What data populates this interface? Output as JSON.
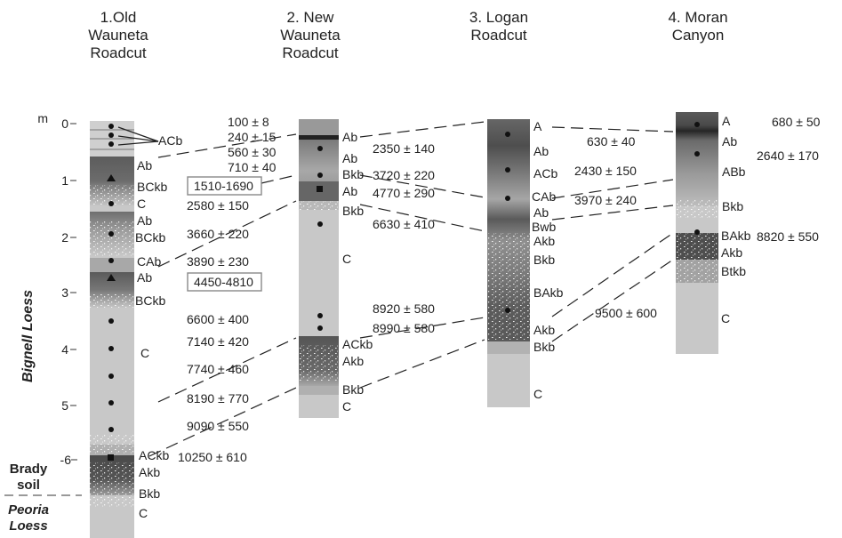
{
  "sections": [
    {
      "id": "old",
      "title": [
        "1.Old",
        "Wauneta",
        "Roadcut"
      ]
    },
    {
      "id": "new",
      "title": [
        "2. New",
        "Wauneta",
        "Roadcut"
      ]
    },
    {
      "id": "logan",
      "title": [
        "3. Logan",
        "Roadcut"
      ]
    },
    {
      "id": "moran",
      "title": [
        "4. Moran",
        "Canyon"
      ]
    }
  ],
  "depth_axis": {
    "unit": "m",
    "ticks": [
      "0",
      "1",
      "2",
      "3",
      "4",
      "5",
      "-6"
    ]
  },
  "stratigraphy": {
    "bignell": "Bignell Loess",
    "brady": [
      "Brady",
      "soil"
    ],
    "peoria": [
      "Peoria",
      "Loess"
    ]
  },
  "horizons": {
    "old": [
      "ACb",
      "Ab",
      "BCkb",
      "C",
      "Ab",
      "BCkb",
      "CAb",
      "Ab",
      "BCkb",
      "C",
      "ACkb",
      "Akb",
      "Bkb",
      "C"
    ],
    "new": [
      "Ab",
      "Ab",
      "Bkb",
      "Ab",
      "Bkb",
      "C",
      "ACkb",
      "Akb",
      "Bkb",
      "C"
    ],
    "logan": [
      "A",
      "Ab",
      "ACb",
      "CAb",
      "Ab",
      "Bwb",
      "Akb",
      "Bkb",
      "BAkb",
      "Akb",
      "Bkb",
      "C"
    ],
    "moran": [
      "A",
      "Ab",
      "ABb",
      "Bkb",
      "BAkb",
      "Akb",
      "Btkb",
      "C"
    ]
  },
  "ages": {
    "old": [
      "100 ±  8",
      "240 ± 15",
      "560 ± 30",
      "710 ± 40",
      "1510-1690",
      "2580 ± 150",
      "3660 ± 220",
      "3890 ± 230",
      "4450-4810",
      "6600 ± 400",
      "7140 ± 420",
      "7740 ± 460",
      "8190 ± 770",
      "9090 ± 550",
      "10250 ± 610"
    ],
    "new": [
      "2350 ± 140",
      "3720 ± 220",
      "4770 ± 290",
      "6630 ± 410",
      "8920 ± 580",
      "8990 ± 580"
    ],
    "logan": [
      "630 ± 40",
      "2430 ± 150",
      "3970 ± 240",
      "9500 ± 600"
    ],
    "moran": [
      "680 ± 50",
      "2640 ± 170",
      "8820 ± 550"
    ]
  }
}
